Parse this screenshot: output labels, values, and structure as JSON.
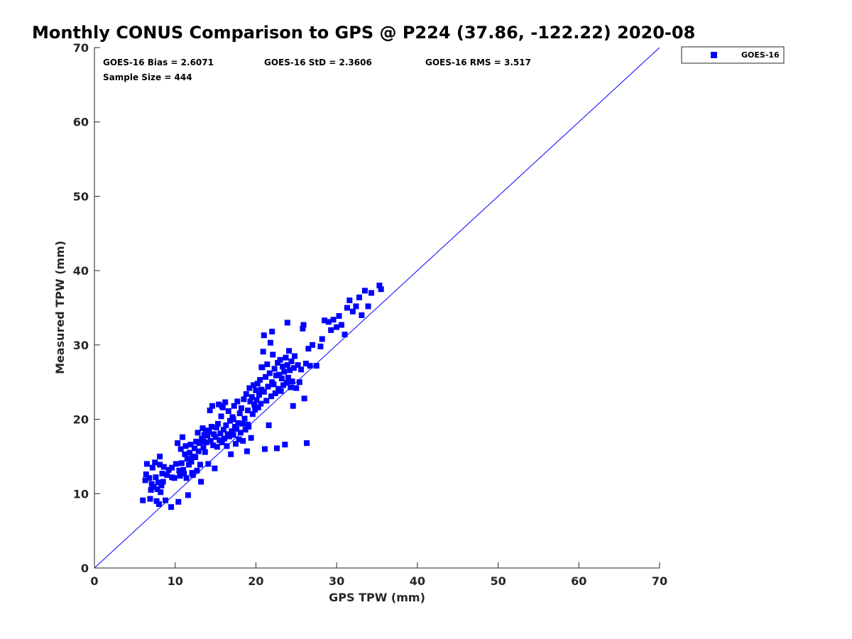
{
  "chart_data": {
    "type": "scatter",
    "title": "Monthly CONUS Comparison to GPS @ P224 (37.86, -122.22) 2020-08",
    "xlabel": "GPS TPW (mm)",
    "ylabel": "Measured TPW (mm)",
    "xlim": [
      0,
      70
    ],
    "ylim": [
      0,
      70
    ],
    "xticks": [
      0,
      10,
      20,
      30,
      40,
      50,
      60,
      70
    ],
    "yticks": [
      0,
      10,
      20,
      30,
      40,
      50,
      60,
      70
    ],
    "grid": false,
    "legend": {
      "position": "top-right-outside",
      "entries": [
        "GOES-16"
      ]
    },
    "annotations": {
      "bias": "GOES-16 Bias = 2.6071",
      "std": "GOES-16 StD = 2.3606",
      "rms": "GOES-16 RMS = 3.517",
      "sample_size": "Sample Size = 444"
    },
    "reference_line": {
      "from": [
        0,
        0
      ],
      "to": [
        70,
        70
      ],
      "color": "#0000ff"
    },
    "series": [
      {
        "name": "GOES-16",
        "color": "#0000ff",
        "marker": "square",
        "points": [
          [
            6.0,
            9.1
          ],
          [
            6.3,
            11.8
          ],
          [
            6.4,
            12.6
          ],
          [
            6.5,
            14.0
          ],
          [
            6.8,
            12.1
          ],
          [
            6.9,
            9.3
          ],
          [
            7.0,
            10.5
          ],
          [
            7.1,
            11.3
          ],
          [
            7.2,
            13.5
          ],
          [
            7.3,
            10.9
          ],
          [
            7.5,
            14.2
          ],
          [
            7.6,
            12.2
          ],
          [
            7.7,
            9.0
          ],
          [
            7.8,
            10.6
          ],
          [
            7.9,
            11.5
          ],
          [
            8.0,
            8.6
          ],
          [
            8.1,
            13.9
          ],
          [
            8.1,
            15.0
          ],
          [
            8.2,
            10.2
          ],
          [
            8.3,
            11.1
          ],
          [
            8.4,
            12.7
          ],
          [
            8.5,
            11.6
          ],
          [
            8.6,
            13.6
          ],
          [
            8.8,
            9.1
          ],
          [
            9.0,
            12.5
          ],
          [
            9.2,
            13.2
          ],
          [
            9.5,
            8.2
          ],
          [
            9.6,
            13.5
          ],
          [
            9.9,
            12.1
          ],
          [
            10.1,
            14.0
          ],
          [
            10.3,
            16.8
          ],
          [
            10.4,
            8.9
          ],
          [
            10.5,
            13.1
          ],
          [
            10.6,
            12.4
          ],
          [
            10.7,
            16.0
          ],
          [
            10.8,
            14.1
          ],
          [
            10.9,
            17.6
          ],
          [
            11.0,
            13.2
          ],
          [
            11.1,
            12.7
          ],
          [
            11.2,
            15.3
          ],
          [
            11.3,
            16.4
          ],
          [
            11.4,
            12.1
          ],
          [
            11.5,
            14.7
          ],
          [
            11.6,
            9.8
          ],
          [
            11.7,
            13.9
          ],
          [
            11.8,
            15.5
          ],
          [
            11.9,
            16.6
          ],
          [
            12.0,
            14.3
          ],
          [
            12.1,
            12.8
          ],
          [
            12.2,
            15.0
          ],
          [
            12.4,
            16.1
          ],
          [
            12.5,
            14.9
          ],
          [
            12.6,
            17.0
          ],
          [
            12.7,
            13.1
          ],
          [
            12.8,
            18.2
          ],
          [
            12.9,
            15.7
          ],
          [
            13.0,
            16.8
          ],
          [
            13.1,
            13.9
          ],
          [
            13.2,
            11.6
          ],
          [
            13.3,
            17.4
          ],
          [
            13.4,
            18.8
          ],
          [
            13.5,
            16.2
          ],
          [
            13.6,
            17.9
          ],
          [
            13.7,
            15.6
          ],
          [
            13.8,
            18.5
          ],
          [
            13.9,
            16.9
          ],
          [
            14.0,
            17.8
          ],
          [
            14.1,
            14.0
          ],
          [
            14.2,
            18.3
          ],
          [
            14.3,
            21.2
          ],
          [
            14.4,
            17.1
          ],
          [
            14.5,
            19.0
          ],
          [
            14.6,
            21.8
          ],
          [
            14.7,
            16.5
          ],
          [
            14.8,
            18.0
          ],
          [
            14.9,
            13.4
          ],
          [
            15.0,
            17.6
          ],
          [
            15.1,
            18.9
          ],
          [
            15.2,
            16.3
          ],
          [
            15.3,
            19.4
          ],
          [
            15.4,
            22.0
          ],
          [
            15.5,
            17.2
          ],
          [
            15.6,
            18.1
          ],
          [
            15.7,
            20.4
          ],
          [
            15.8,
            16.9
          ],
          [
            15.9,
            21.6
          ],
          [
            16.0,
            18.6
          ],
          [
            16.1,
            17.4
          ],
          [
            16.2,
            22.3
          ],
          [
            16.3,
            19.2
          ],
          [
            16.4,
            16.4
          ],
          [
            16.5,
            18.0
          ],
          [
            16.6,
            21.1
          ],
          [
            16.7,
            17.7
          ],
          [
            16.8,
            19.8
          ],
          [
            16.9,
            15.3
          ],
          [
            17.0,
            18.4
          ],
          [
            17.1,
            20.3
          ],
          [
            17.2,
            17.9
          ],
          [
            17.3,
            21.8
          ],
          [
            17.4,
            19.0
          ],
          [
            17.5,
            16.7
          ],
          [
            17.6,
            18.7
          ],
          [
            17.7,
            22.4
          ],
          [
            17.8,
            19.5
          ],
          [
            17.9,
            17.3
          ],
          [
            18.0,
            20.8
          ],
          [
            18.1,
            18.2
          ],
          [
            18.2,
            21.5
          ],
          [
            18.3,
            19.4
          ],
          [
            18.4,
            17.1
          ],
          [
            18.5,
            22.7
          ],
          [
            18.6,
            20.1
          ],
          [
            18.7,
            18.6
          ],
          [
            18.8,
            23.4
          ],
          [
            18.9,
            15.7
          ],
          [
            19.0,
            21.2
          ],
          [
            19.1,
            19.0
          ],
          [
            19.2,
            24.2
          ],
          [
            19.3,
            22.4
          ],
          [
            19.4,
            17.5
          ],
          [
            19.5,
            23.0
          ],
          [
            19.6,
            20.7
          ],
          [
            19.7,
            24.6
          ],
          [
            19.8,
            22.0
          ],
          [
            19.9,
            21.3
          ],
          [
            20.0,
            23.9
          ],
          [
            20.1,
            22.6
          ],
          [
            20.2,
            24.8
          ],
          [
            20.3,
            21.6
          ],
          [
            20.4,
            23.3
          ],
          [
            20.5,
            25.3
          ],
          [
            20.6,
            22.1
          ],
          [
            20.7,
            24.0
          ],
          [
            20.8,
            27.0
          ],
          [
            20.9,
            29.1
          ],
          [
            21.0,
            23.7
          ],
          [
            21.1,
            16.0
          ],
          [
            21.2,
            25.7
          ],
          [
            21.3,
            22.5
          ],
          [
            21.4,
            27.4
          ],
          [
            21.5,
            24.4
          ],
          [
            21.6,
            19.2
          ],
          [
            21.7,
            26.2
          ],
          [
            21.8,
            30.3
          ],
          [
            21.9,
            23.1
          ],
          [
            22.0,
            25.0
          ],
          [
            22.1,
            28.7
          ],
          [
            22.2,
            24.7
          ],
          [
            22.3,
            26.8
          ],
          [
            22.4,
            23.5
          ],
          [
            22.5,
            25.9
          ],
          [
            22.6,
            16.1
          ],
          [
            22.7,
            27.6
          ],
          [
            22.8,
            24.1
          ],
          [
            22.9,
            26.0
          ],
          [
            23.0,
            28.0
          ],
          [
            23.1,
            23.8
          ],
          [
            23.2,
            25.5
          ],
          [
            23.3,
            27.1
          ],
          [
            23.4,
            24.6
          ],
          [
            23.5,
            26.4
          ],
          [
            23.6,
            16.6
          ],
          [
            23.7,
            28.3
          ],
          [
            23.8,
            24.9
          ],
          [
            23.9,
            27.3
          ],
          [
            24.0,
            25.6
          ],
          [
            24.1,
            29.2
          ],
          [
            24.2,
            26.6
          ],
          [
            24.3,
            24.3
          ],
          [
            24.4,
            27.8
          ],
          [
            24.5,
            25.1
          ],
          [
            24.6,
            21.8
          ],
          [
            24.7,
            26.9
          ],
          [
            24.8,
            28.5
          ],
          [
            25.0,
            24.2
          ],
          [
            25.2,
            27.3
          ],
          [
            25.4,
            25.0
          ],
          [
            25.6,
            26.7
          ],
          [
            25.8,
            32.2
          ],
          [
            26.0,
            22.8
          ],
          [
            26.2,
            27.5
          ],
          [
            26.3,
            16.8
          ],
          [
            26.5,
            29.5
          ],
          [
            26.7,
            27.2
          ],
          [
            27.0,
            30.0
          ],
          [
            27.5,
            27.2
          ],
          [
            28.0,
            29.8
          ],
          [
            28.2,
            30.8
          ],
          [
            28.5,
            33.3
          ],
          [
            29.0,
            33.1
          ],
          [
            29.3,
            32.0
          ],
          [
            29.6,
            33.4
          ],
          [
            30.0,
            32.4
          ],
          [
            30.3,
            33.9
          ],
          [
            30.6,
            32.7
          ],
          [
            31.0,
            31.4
          ],
          [
            31.3,
            35.0
          ],
          [
            31.6,
            36.0
          ],
          [
            32.0,
            34.5
          ],
          [
            32.4,
            35.2
          ],
          [
            32.8,
            36.4
          ],
          [
            33.1,
            34.0
          ],
          [
            33.5,
            37.3
          ],
          [
            33.9,
            35.2
          ],
          [
            34.3,
            37.0
          ],
          [
            35.3,
            38.0
          ],
          [
            35.5,
            37.5
          ],
          [
            22.0,
            31.8
          ],
          [
            21.0,
            31.3
          ],
          [
            23.9,
            33.0
          ],
          [
            25.9,
            32.7
          ],
          [
            9.6,
            12.2
          ],
          [
            12.2,
            12.5
          ],
          [
            17.2,
            20.0
          ],
          [
            19.0,
            19.3
          ],
          [
            14.0,
            18.2
          ],
          [
            15.8,
            21.8
          ],
          [
            13.5,
            17.0
          ],
          [
            20.7,
            27.0
          ]
        ]
      }
    ]
  }
}
